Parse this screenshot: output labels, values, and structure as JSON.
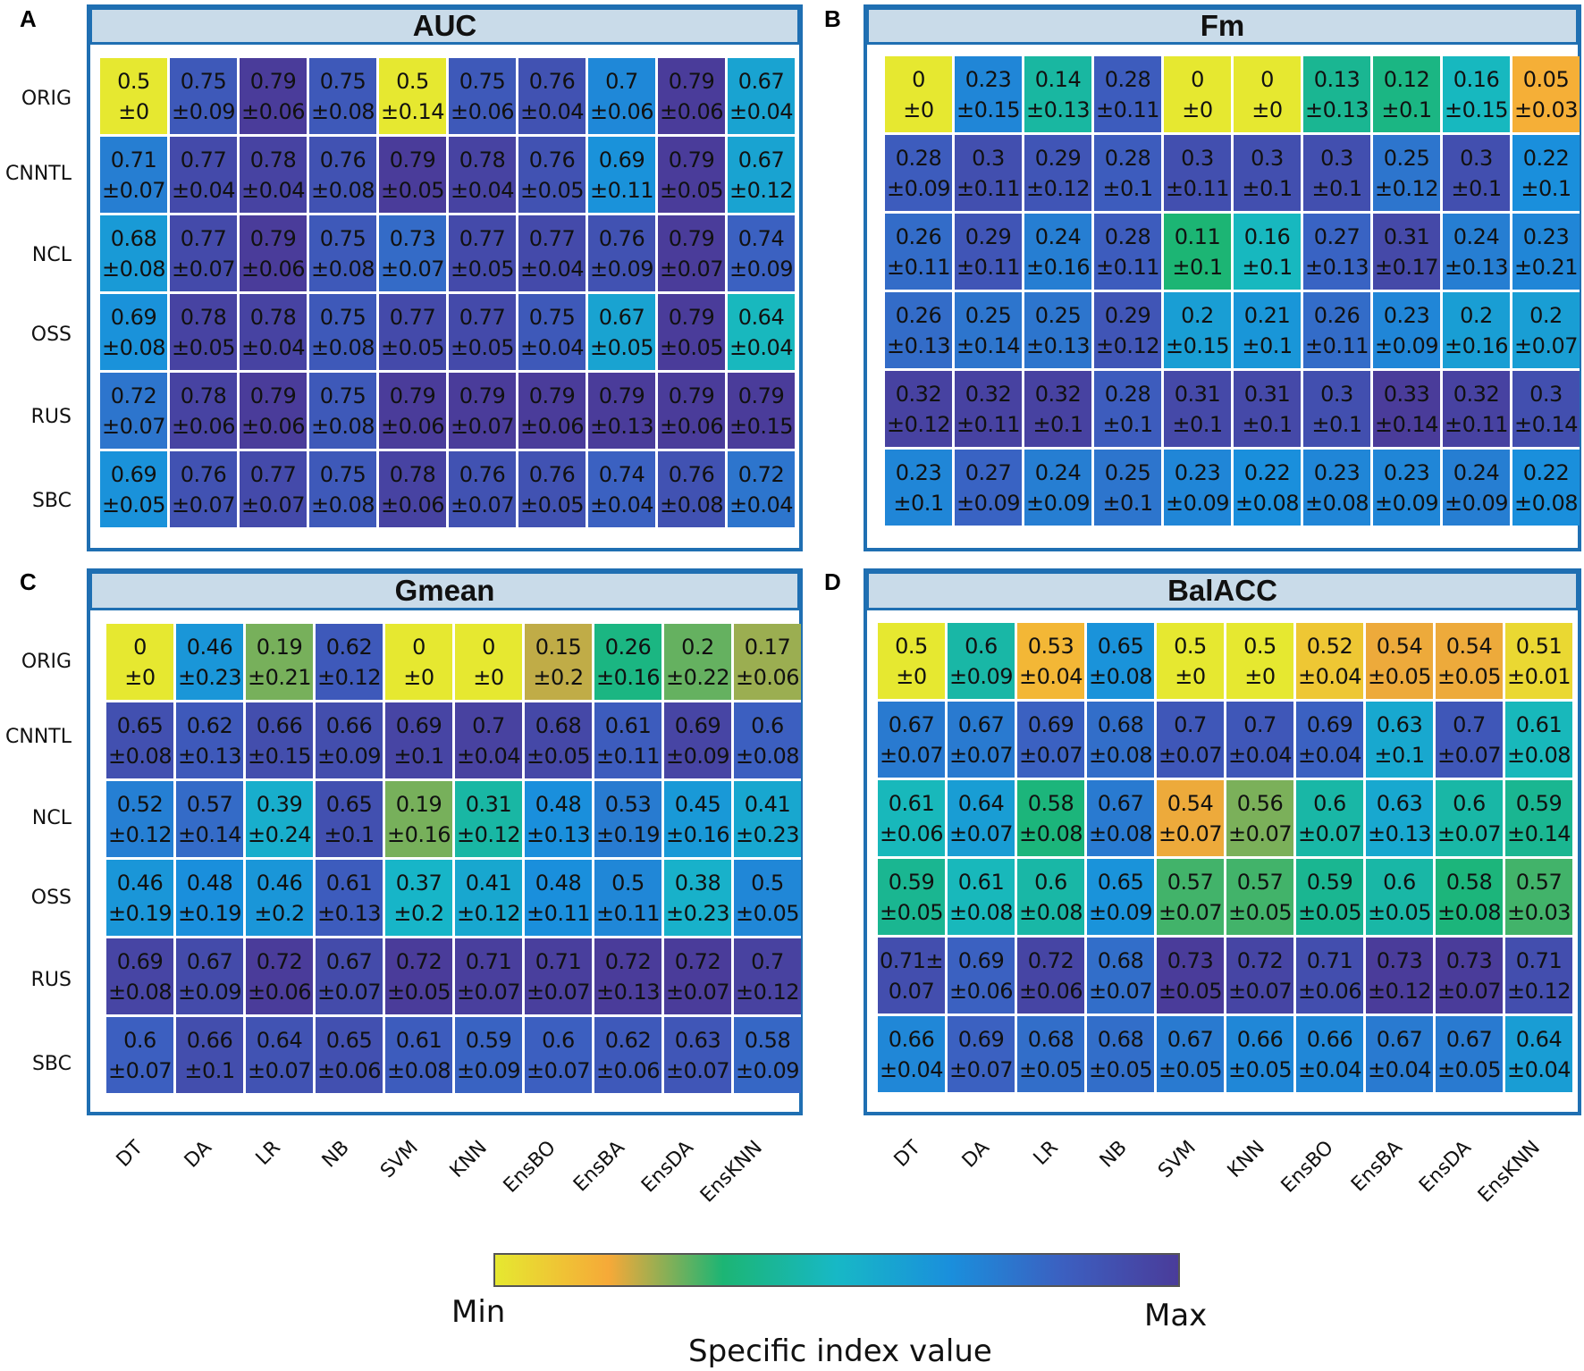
{
  "colorscale": {
    "stops": [
      "#e6e830",
      "#f6a938",
      "#1cb574",
      "#17b8c6",
      "#1a8fdc",
      "#3c5fc0",
      "#4a3c9a"
    ],
    "min_label": "Min",
    "max_label": "Max",
    "title": "Specific index value"
  },
  "chart_data": [
    {
      "type": "heatmap",
      "panel_letter": "A",
      "title": "AUC",
      "rows": [
        "ORIG",
        "CNNTL",
        "NCL",
        "OSS",
        "RUS",
        "SBC"
      ],
      "columns": [
        "DT",
        "DA",
        "LR",
        "NB",
        "SVM",
        "KNN",
        "EnsBO",
        "EnsBA",
        "EnsDA",
        "EnsKNN"
      ],
      "means": [
        [
          0.5,
          0.75,
          0.79,
          0.75,
          0.5,
          0.75,
          0.76,
          0.7,
          0.79,
          0.67
        ],
        [
          0.71,
          0.77,
          0.78,
          0.76,
          0.79,
          0.78,
          0.76,
          0.69,
          0.79,
          0.67
        ],
        [
          0.68,
          0.77,
          0.79,
          0.75,
          0.73,
          0.77,
          0.77,
          0.76,
          0.79,
          0.74
        ],
        [
          0.69,
          0.78,
          0.78,
          0.75,
          0.77,
          0.77,
          0.75,
          0.67,
          0.79,
          0.64
        ],
        [
          0.72,
          0.78,
          0.79,
          0.75,
          0.79,
          0.79,
          0.79,
          0.79,
          0.79,
          0.79
        ],
        [
          0.69,
          0.76,
          0.77,
          0.75,
          0.78,
          0.76,
          0.76,
          0.74,
          0.76,
          0.72
        ]
      ],
      "value_text": [
        [
          "0.5",
          "0.75",
          "0.79",
          "0.75",
          "0.5",
          "0.75",
          "0.76",
          "0.7",
          "0.79",
          "0.67"
        ],
        [
          "0.71",
          "0.77",
          "0.78",
          "0.76",
          "0.79",
          "0.78",
          "0.76",
          "0.69",
          "0.79",
          "0.67"
        ],
        [
          "0.68",
          "0.77",
          "0.79",
          "0.75",
          "0.73",
          "0.77",
          "0.77",
          "0.76",
          "0.79",
          "0.74"
        ],
        [
          "0.69",
          "0.78",
          "0.78",
          "0.75",
          "0.77",
          "0.77",
          "0.75",
          "0.67",
          "0.79",
          "0.64"
        ],
        [
          "0.72",
          "0.78",
          "0.79",
          "0.75",
          "0.79",
          "0.79",
          "0.79",
          "0.79",
          "0.79",
          "0.79"
        ],
        [
          "0.69",
          "0.76",
          "0.77",
          "0.75",
          "0.78",
          "0.76",
          "0.76",
          "0.74",
          "0.76",
          "0.72"
        ]
      ],
      "sd_text": [
        [
          "±0",
          "±0.09",
          "±0.06",
          "±0.08",
          "±0.14",
          "±0.06",
          "±0.04",
          "±0.06",
          "±0.06",
          "±0.04"
        ],
        [
          "±0.07",
          "±0.04",
          "±0.04",
          "±0.08",
          "±0.05",
          "±0.04",
          "±0.05",
          "±0.11",
          "±0.05",
          "±0.12"
        ],
        [
          "±0.08",
          "±0.07",
          "±0.06",
          "±0.08",
          "±0.07",
          "±0.05",
          "±0.04",
          "±0.09",
          "±0.07",
          "±0.09"
        ],
        [
          "±0.08",
          "±0.05",
          "±0.04",
          "±0.08",
          "±0.05",
          "±0.05",
          "±0.04",
          "±0.05",
          "±0.05",
          "±0.04"
        ],
        [
          "±0.07",
          "±0.06",
          "±0.06",
          "±0.08",
          "±0.06",
          "±0.07",
          "±0.06",
          "±0.13",
          "±0.06",
          "±0.15"
        ],
        [
          "±0.05",
          "±0.07",
          "±0.07",
          "±0.08",
          "±0.06",
          "±0.07",
          "±0.05",
          "±0.04",
          "±0.08",
          "±0.04"
        ]
      ]
    },
    {
      "type": "heatmap",
      "panel_letter": "B",
      "title": "Fm",
      "rows": [
        "ORIG",
        "CNNTL",
        "NCL",
        "OSS",
        "RUS",
        "SBC"
      ],
      "columns": [
        "DT",
        "DA",
        "LR",
        "NB",
        "SVM",
        "KNN",
        "EnsBO",
        "EnsBA",
        "EnsDA",
        "EnsKNN"
      ],
      "means": [
        [
          0,
          0.23,
          0.14,
          0.28,
          0,
          0,
          0.13,
          0.12,
          0.16,
          0.05
        ],
        [
          0.28,
          0.3,
          0.29,
          0.28,
          0.3,
          0.3,
          0.3,
          0.25,
          0.3,
          0.22
        ],
        [
          0.26,
          0.29,
          0.24,
          0.28,
          0.11,
          0.16,
          0.27,
          0.31,
          0.24,
          0.23
        ],
        [
          0.26,
          0.25,
          0.25,
          0.29,
          0.2,
          0.21,
          0.26,
          0.23,
          0.2,
          0.2
        ],
        [
          0.32,
          0.32,
          0.32,
          0.28,
          0.31,
          0.31,
          0.3,
          0.33,
          0.32,
          0.3
        ],
        [
          0.23,
          0.27,
          0.24,
          0.25,
          0.23,
          0.22,
          0.23,
          0.23,
          0.24,
          0.22
        ]
      ],
      "value_text": [
        [
          "0",
          "0.23",
          "0.14",
          "0.28",
          "0",
          "0",
          "0.13",
          "0.12",
          "0.16",
          "0.05"
        ],
        [
          "0.28",
          "0.3",
          "0.29",
          "0.28",
          "0.3",
          "0.3",
          "0.3",
          "0.25",
          "0.3",
          "0.22"
        ],
        [
          "0.26",
          "0.29",
          "0.24",
          "0.28",
          "0.11",
          "0.16",
          "0.27",
          "0.31",
          "0.24",
          "0.23"
        ],
        [
          "0.26",
          "0.25",
          "0.25",
          "0.29",
          "0.2",
          "0.21",
          "0.26",
          "0.23",
          "0.2",
          "0.2"
        ],
        [
          "0.32",
          "0.32",
          "0.32",
          "0.28",
          "0.31",
          "0.31",
          "0.3",
          "0.33",
          "0.32",
          "0.3"
        ],
        [
          "0.23",
          "0.27",
          "0.24",
          "0.25",
          "0.23",
          "0.22",
          "0.23",
          "0.23",
          "0.24",
          "0.22"
        ]
      ],
      "sd_text": [
        [
          "±0",
          "±0.15",
          "±0.13",
          "±0.11",
          "±0",
          "±0",
          "±0.13",
          "±0.1",
          "±0.15",
          "±0.03"
        ],
        [
          "±0.09",
          "±0.11",
          "±0.12",
          "±0.1",
          "±0.11",
          "±0.1",
          "±0.1",
          "±0.12",
          "±0.1",
          "±0.1"
        ],
        [
          "±0.11",
          "±0.11",
          "±0.16",
          "±0.11",
          "±0.1",
          "±0.1",
          "±0.13",
          "±0.17",
          "±0.13",
          "±0.21"
        ],
        [
          "±0.13",
          "±0.14",
          "±0.13",
          "±0.12",
          "±0.15",
          "±0.1",
          "±0.11",
          "±0.09",
          "±0.16",
          "±0.07"
        ],
        [
          "±0.12",
          "±0.11",
          "±0.1",
          "±0.1",
          "±0.1",
          "±0.1",
          "±0.1",
          "±0.14",
          "±0.11",
          "±0.14"
        ],
        [
          "±0.1",
          "±0.09",
          "±0.09",
          "±0.1",
          "±0.09",
          "±0.08",
          "±0.08",
          "±0.09",
          "±0.09",
          "±0.08"
        ]
      ]
    },
    {
      "type": "heatmap",
      "panel_letter": "C",
      "title": "Gmean",
      "rows": [
        "ORIG",
        "CNNTL",
        "NCL",
        "OSS",
        "RUS",
        "SBC"
      ],
      "columns": [
        "DT",
        "DA",
        "LR",
        "NB",
        "SVM",
        "KNN",
        "EnsBO",
        "EnsBA",
        "EnsDA",
        "EnsKNN"
      ],
      "means": [
        [
          0,
          0.46,
          0.19,
          0.62,
          0,
          0,
          0.15,
          0.26,
          0.2,
          0.17
        ],
        [
          0.65,
          0.62,
          0.66,
          0.66,
          0.69,
          0.7,
          0.68,
          0.61,
          0.69,
          0.6
        ],
        [
          0.52,
          0.57,
          0.39,
          0.65,
          0.19,
          0.31,
          0.48,
          0.53,
          0.45,
          0.41
        ],
        [
          0.46,
          0.48,
          0.46,
          0.61,
          0.37,
          0.41,
          0.48,
          0.5,
          0.38,
          0.5
        ],
        [
          0.69,
          0.67,
          0.72,
          0.67,
          0.72,
          0.71,
          0.71,
          0.72,
          0.72,
          0.7
        ],
        [
          0.6,
          0.66,
          0.64,
          0.65,
          0.61,
          0.59,
          0.6,
          0.62,
          0.63,
          0.58
        ]
      ],
      "value_text": [
        [
          "0",
          "0.46",
          "0.19",
          "0.62",
          "0",
          "0",
          "0.15",
          "0.26",
          "0.2",
          "0.17"
        ],
        [
          "0.65",
          "0.62",
          "0.66",
          "0.66",
          "0.69",
          "0.7",
          "0.68",
          "0.61",
          "0.69",
          "0.6"
        ],
        [
          "0.52",
          "0.57",
          "0.39",
          "0.65",
          "0.19",
          "0.31",
          "0.48",
          "0.53",
          "0.45",
          "0.41"
        ],
        [
          "0.46",
          "0.48",
          "0.46",
          "0.61",
          "0.37",
          "0.41",
          "0.48",
          "0.5",
          "0.38",
          "0.5"
        ],
        [
          "0.69",
          "0.67",
          "0.72",
          "0.67",
          "0.72",
          "0.71",
          "0.71",
          "0.72",
          "0.72",
          "0.7"
        ],
        [
          "0.6",
          "0.66",
          "0.64",
          "0.65",
          "0.61",
          "0.59",
          "0.6",
          "0.62",
          "0.63",
          "0.58"
        ]
      ],
      "sd_text": [
        [
          "±0",
          "±0.23",
          "±0.21",
          "±0.12",
          "±0",
          "±0",
          "±0.2",
          "±0.16",
          "±0.22",
          "±0.06"
        ],
        [
          "±0.08",
          "±0.13",
          "±0.15",
          "±0.09",
          "±0.1",
          "±0.04",
          "±0.05",
          "±0.11",
          "±0.09",
          "±0.08"
        ],
        [
          "±0.12",
          "±0.14",
          "±0.24",
          "±0.1",
          "±0.16",
          "±0.12",
          "±0.13",
          "±0.19",
          "±0.16",
          "±0.23"
        ],
        [
          "±0.19",
          "±0.19",
          "±0.2",
          "±0.13",
          "±0.2",
          "±0.12",
          "±0.11",
          "±0.11",
          "±0.23",
          "±0.05"
        ],
        [
          "±0.08",
          "±0.09",
          "±0.06",
          "±0.07",
          "±0.05",
          "±0.07",
          "±0.07",
          "±0.13",
          "±0.07",
          "±0.12"
        ],
        [
          "±0.07",
          "±0.1",
          "±0.07",
          "±0.06",
          "±0.08",
          "±0.09",
          "±0.07",
          "±0.06",
          "±0.07",
          "±0.09"
        ]
      ]
    },
    {
      "type": "heatmap",
      "panel_letter": "D",
      "title": "BalACC",
      "rows": [
        "ORIG",
        "CNNTL",
        "NCL",
        "OSS",
        "RUS",
        "SBC"
      ],
      "columns": [
        "DT",
        "DA",
        "LR",
        "NB",
        "SVM",
        "KNN",
        "EnsBO",
        "EnsBA",
        "EnsDA",
        "EnsKNN"
      ],
      "means": [
        [
          0.5,
          0.6,
          0.53,
          0.65,
          0.5,
          0.5,
          0.52,
          0.54,
          0.54,
          0.51
        ],
        [
          0.67,
          0.67,
          0.69,
          0.68,
          0.7,
          0.7,
          0.69,
          0.63,
          0.7,
          0.61
        ],
        [
          0.61,
          0.64,
          0.58,
          0.67,
          0.54,
          0.56,
          0.6,
          0.63,
          0.6,
          0.59
        ],
        [
          0.59,
          0.61,
          0.6,
          0.65,
          0.57,
          0.57,
          0.59,
          0.6,
          0.58,
          0.57
        ],
        [
          0.71,
          0.69,
          0.72,
          0.68,
          0.73,
          0.72,
          0.71,
          0.73,
          0.73,
          0.71
        ],
        [
          0.66,
          0.69,
          0.68,
          0.68,
          0.67,
          0.66,
          0.66,
          0.67,
          0.67,
          0.64
        ]
      ],
      "value_text": [
        [
          "0.5",
          "0.6",
          "0.53",
          "0.65",
          "0.5",
          "0.5",
          "0.52",
          "0.54",
          "0.54",
          "0.51"
        ],
        [
          "0.67",
          "0.67",
          "0.69",
          "0.68",
          "0.7",
          "0.7",
          "0.69",
          "0.63",
          "0.7",
          "0.61"
        ],
        [
          "0.61",
          "0.64",
          "0.58",
          "0.67",
          "0.54",
          "0.56",
          "0.6",
          "0.63",
          "0.6",
          "0.59"
        ],
        [
          "0.59",
          "0.61",
          "0.6",
          "0.65",
          "0.57",
          "0.57",
          "0.59",
          "0.6",
          "0.58",
          "0.57"
        ],
        [
          "0.71±",
          "0.69",
          "0.72",
          "0.68",
          "0.73",
          "0.72",
          "0.71",
          "0.73",
          "0.73",
          "0.71"
        ],
        [
          "0.66",
          "0.69",
          "0.68",
          "0.68",
          "0.67",
          "0.66",
          "0.66",
          "0.67",
          "0.67",
          "0.64"
        ]
      ],
      "sd_text": [
        [
          "±0",
          "±0.09",
          "±0.04",
          "±0.08",
          "±0",
          "±0",
          "±0.04",
          "±0.05",
          "±0.05",
          "±0.01"
        ],
        [
          "±0.07",
          "±0.07",
          "±0.07",
          "±0.08",
          "±0.07",
          "±0.04",
          "±0.04",
          "±0.1",
          "±0.07",
          "±0.08"
        ],
        [
          "±0.06",
          "±0.07",
          "±0.08",
          "±0.08",
          "±0.07",
          "±0.07",
          "±0.07",
          "±0.13",
          "±0.07",
          "±0.14"
        ],
        [
          "±0.05",
          "±0.08",
          "±0.08",
          "±0.09",
          "±0.07",
          "±0.05",
          "±0.05",
          "±0.05",
          "±0.08",
          "±0.03"
        ],
        [
          "0.07",
          "±0.06",
          "±0.06",
          "±0.07",
          "±0.05",
          "±0.07",
          "±0.06",
          "±0.12",
          "±0.07",
          "±0.12"
        ],
        [
          "±0.04",
          "±0.07",
          "±0.05",
          "±0.05",
          "±0.05",
          "±0.05",
          "±0.04",
          "±0.04",
          "±0.05",
          "±0.04"
        ]
      ]
    }
  ]
}
